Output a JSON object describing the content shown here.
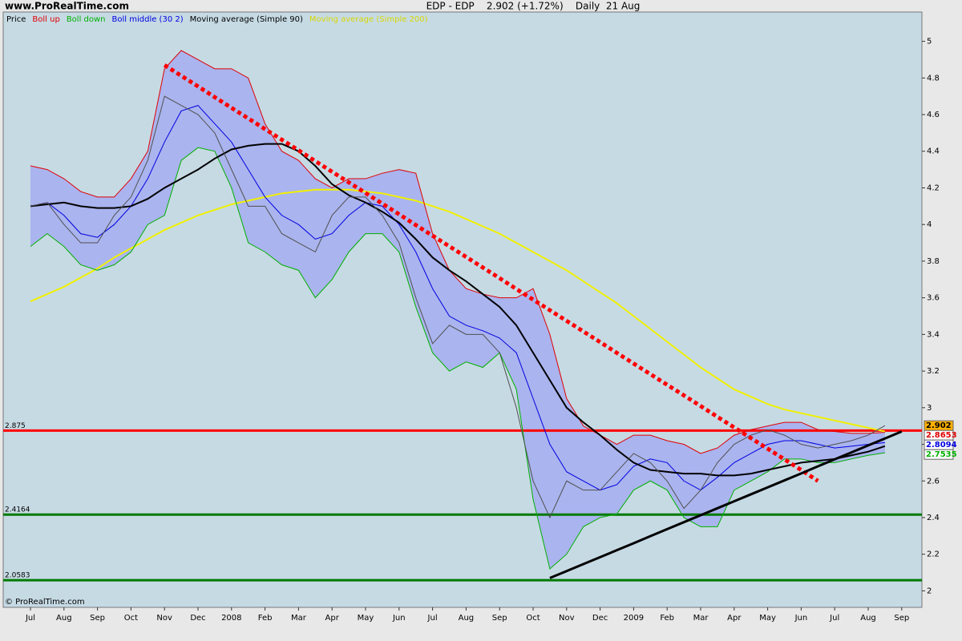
{
  "header": "www.ProRealTime.com",
  "footer": "© ProRealTime.com",
  "chart_data": {
    "type": "line",
    "title": "EDP - EDP    2.902 (+1.72%)    Daily  21 Aug",
    "categories": [
      "Jul",
      null,
      "Aug",
      null,
      "Sep",
      null,
      "Oct",
      null,
      "Nov",
      null,
      "Dec",
      null,
      "2008",
      null,
      "Feb",
      null,
      "Mar",
      null,
      "Apr",
      null,
      "May",
      null,
      "Jun",
      null,
      "Jul",
      null,
      "Aug",
      null,
      "Sep",
      null,
      "Oct",
      null,
      "Nov",
      null,
      "Dec",
      null,
      "2009",
      null,
      "Feb",
      null,
      "Mar",
      null,
      "Apr",
      null,
      "May",
      null,
      "Jun",
      null,
      "Jul",
      null,
      "Aug",
      null,
      "Sep"
    ],
    "ylim": [
      1.91,
      5.16
    ],
    "yticks": [
      2,
      2.2,
      2.4,
      2.6,
      2.8,
      3,
      3.2,
      3.4,
      3.6,
      3.8,
      4,
      4.2,
      4.4,
      4.6,
      4.8,
      5
    ],
    "series": [
      {
        "name": "Price",
        "color": "#505050",
        "values": [
          4.1,
          4.12,
          4.0,
          3.9,
          3.9,
          4.05,
          4.15,
          4.35,
          4.7,
          4.65,
          4.6,
          4.5,
          4.3,
          4.1,
          4.1,
          3.95,
          3.9,
          3.85,
          4.05,
          4.15,
          4.15,
          4.05,
          3.9,
          3.6,
          3.35,
          3.45,
          3.4,
          3.4,
          3.3,
          3.0,
          2.6,
          2.4,
          2.6,
          2.55,
          2.55,
          2.65,
          2.75,
          2.7,
          2.6,
          2.45,
          2.55,
          2.7,
          2.8,
          2.85,
          2.88,
          2.85,
          2.8,
          2.78,
          2.8,
          2.82,
          2.85,
          2.902,
          null
        ]
      },
      {
        "name": "Boll up",
        "color": "#e00000",
        "values": [
          4.32,
          4.3,
          4.25,
          4.18,
          4.15,
          4.15,
          4.25,
          4.4,
          4.85,
          4.95,
          4.9,
          4.85,
          4.85,
          4.8,
          4.55,
          4.4,
          4.35,
          4.25,
          4.2,
          4.25,
          4.25,
          4.28,
          4.3,
          4.28,
          3.95,
          3.75,
          3.65,
          3.62,
          3.6,
          3.6,
          3.65,
          3.4,
          3.05,
          2.9,
          2.85,
          2.8,
          2.85,
          2.85,
          2.82,
          2.8,
          2.75,
          2.78,
          2.85,
          2.88,
          2.9,
          2.92,
          2.92,
          2.88,
          2.87,
          2.86,
          2.86,
          2.8653,
          null
        ]
      },
      {
        "name": "Boll down",
        "color": "#00b000",
        "values": [
          3.88,
          3.95,
          3.88,
          3.78,
          3.75,
          3.78,
          3.85,
          4.0,
          4.05,
          4.35,
          4.42,
          4.4,
          4.2,
          3.9,
          3.85,
          3.78,
          3.75,
          3.6,
          3.7,
          3.85,
          3.95,
          3.95,
          3.85,
          3.55,
          3.3,
          3.2,
          3.25,
          3.22,
          3.3,
          3.1,
          2.5,
          2.12,
          2.2,
          2.35,
          2.4,
          2.42,
          2.55,
          2.6,
          2.55,
          2.4,
          2.35,
          2.35,
          2.55,
          2.6,
          2.65,
          2.72,
          2.72,
          2.7,
          2.7,
          2.72,
          2.74,
          2.7535,
          null
        ]
      },
      {
        "name": "Boll middle (30 2)",
        "color": "#0000e0",
        "values": [
          4.1,
          4.12,
          4.05,
          3.95,
          3.93,
          4.0,
          4.1,
          4.25,
          4.45,
          4.62,
          4.65,
          4.55,
          4.45,
          4.3,
          4.15,
          4.05,
          4.0,
          3.92,
          3.95,
          4.05,
          4.12,
          4.1,
          4.0,
          3.85,
          3.65,
          3.5,
          3.45,
          3.42,
          3.38,
          3.3,
          3.05,
          2.8,
          2.65,
          2.6,
          2.55,
          2.58,
          2.68,
          2.72,
          2.7,
          2.6,
          2.55,
          2.62,
          2.7,
          2.75,
          2.8,
          2.82,
          2.82,
          2.8,
          2.78,
          2.79,
          2.8,
          2.8094,
          null
        ]
      },
      {
        "name": "Moving average (Simple 90)",
        "color": "#000000",
        "values": [
          4.1,
          4.11,
          4.12,
          4.1,
          4.09,
          4.09,
          4.1,
          4.14,
          4.2,
          4.25,
          4.3,
          4.36,
          4.41,
          4.43,
          4.44,
          4.44,
          4.4,
          4.32,
          4.22,
          4.16,
          4.12,
          4.07,
          4.01,
          3.92,
          3.82,
          3.75,
          3.69,
          3.62,
          3.55,
          3.45,
          3.3,
          3.15,
          3.0,
          2.92,
          2.85,
          2.77,
          2.7,
          2.66,
          2.65,
          2.64,
          2.64,
          2.63,
          2.63,
          2.64,
          2.66,
          2.68,
          2.7,
          2.71,
          2.72,
          2.74,
          2.76,
          2.79,
          null
        ]
      },
      {
        "name": "Moving average (Simple 200)",
        "color": "#f0f000",
        "values": [
          3.58,
          3.62,
          3.66,
          3.71,
          3.76,
          3.82,
          3.87,
          3.92,
          3.97,
          4.01,
          4.05,
          4.08,
          4.11,
          4.13,
          4.15,
          4.17,
          4.18,
          4.19,
          4.19,
          4.19,
          4.18,
          4.17,
          4.15,
          4.13,
          4.1,
          4.07,
          4.03,
          3.99,
          3.95,
          3.9,
          3.85,
          3.8,
          3.75,
          3.69,
          3.63,
          3.57,
          3.5,
          3.43,
          3.36,
          3.29,
          3.22,
          3.16,
          3.1,
          3.06,
          3.02,
          2.99,
          2.97,
          2.95,
          2.93,
          2.91,
          2.89,
          2.87,
          null
        ]
      }
    ],
    "band_fill": "#aab4ee",
    "levels": [
      {
        "value": 2.875,
        "color": "#ff0000"
      },
      {
        "value": 2.4164,
        "color": "#007a00"
      },
      {
        "value": 2.0583,
        "color": "#007a00"
      }
    ],
    "trendlines": [
      {
        "color": "#ff0000",
        "dashed": true,
        "values": [
          null,
          null,
          null,
          null,
          null,
          null,
          null,
          null,
          4.87,
          4.812,
          4.754,
          4.695,
          4.637,
          4.579,
          4.521,
          4.463,
          4.405,
          4.346,
          4.288,
          4.23,
          4.172,
          4.114,
          4.056,
          3.997,
          3.939,
          3.881,
          3.823,
          3.765,
          3.707,
          3.648,
          3.59,
          3.532,
          3.474,
          3.416,
          3.358,
          3.299,
          3.241,
          3.183,
          3.125,
          3.067,
          3.009,
          2.95,
          2.892,
          2.834,
          2.776,
          2.718,
          2.66,
          2.6,
          null,
          null,
          null,
          null,
          null
        ]
      },
      {
        "color": "#000000",
        "dashed": false,
        "values": [
          null,
          null,
          null,
          null,
          null,
          null,
          null,
          null,
          null,
          null,
          null,
          null,
          null,
          null,
          null,
          null,
          null,
          null,
          null,
          null,
          null,
          null,
          null,
          null,
          null,
          null,
          null,
          null,
          null,
          null,
          null,
          2.07,
          2.108,
          2.146,
          2.184,
          2.222,
          2.26,
          2.299,
          2.337,
          2.375,
          2.413,
          2.451,
          2.489,
          2.527,
          2.565,
          2.603,
          2.641,
          2.68,
          2.718,
          2.756,
          2.794,
          2.832,
          2.87
        ]
      }
    ],
    "tags": [
      {
        "value": 2.902,
        "color": "#000000",
        "background": "#ffb000"
      },
      {
        "value": 2.8653,
        "color": "#e00000",
        "background": "#ffffff"
      },
      {
        "value": 2.8094,
        "color": "#0000e0",
        "background": "#ffffff"
      },
      {
        "value": 2.7535,
        "color": "#00b000",
        "background": "#ffffff"
      }
    ]
  }
}
